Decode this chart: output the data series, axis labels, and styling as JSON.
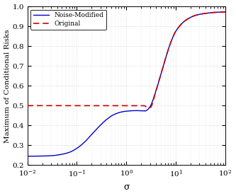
{
  "title": "",
  "xlabel": "σ",
  "ylabel": "Maximum of Conditional Risks",
  "xlim_log": [
    -2,
    2
  ],
  "ylim": [
    0.2,
    1.0
  ],
  "yticks": [
    0.2,
    0.3,
    0.4,
    0.5,
    0.6,
    0.7,
    0.8,
    0.9,
    1.0
  ],
  "legend_noise": "Noise-Modified",
  "legend_original": "Original",
  "line_color_noise": "#0000cc",
  "line_color_original": "#cc0000",
  "background": "#ffffff",
  "grid_color": "#aaaaaa",
  "curve_noise_x": [
    -2.0,
    -1.7,
    -1.5,
    -1.3,
    -1.15,
    -1.0,
    -0.85,
    -0.7,
    -0.55,
    -0.4,
    -0.25,
    -0.1,
    0.0,
    0.1,
    0.2,
    0.3,
    0.35,
    0.38,
    0.42,
    0.48,
    0.6,
    0.7,
    0.8,
    0.9,
    1.0,
    1.2,
    1.4,
    1.6,
    1.8,
    2.0
  ],
  "curve_noise_y": [
    0.245,
    0.246,
    0.248,
    0.255,
    0.265,
    0.285,
    0.315,
    0.355,
    0.395,
    0.43,
    0.455,
    0.468,
    0.472,
    0.474,
    0.475,
    0.474,
    0.474,
    0.473,
    0.478,
    0.495,
    0.575,
    0.66,
    0.745,
    0.82,
    0.875,
    0.93,
    0.955,
    0.965,
    0.97,
    0.972
  ],
  "curve_orig_x": [
    -2.0,
    -1.0,
    -0.5,
    0.0,
    0.2,
    0.3,
    0.35,
    0.38,
    0.42,
    0.48,
    0.6,
    0.7,
    0.8,
    0.9,
    1.0,
    1.2,
    1.4,
    1.6,
    1.8,
    2.0
  ],
  "curve_orig_y": [
    0.5,
    0.5,
    0.5,
    0.5,
    0.5,
    0.5,
    0.5,
    0.498,
    0.49,
    0.49,
    0.575,
    0.66,
    0.745,
    0.82,
    0.875,
    0.93,
    0.955,
    0.965,
    0.97,
    0.972
  ]
}
